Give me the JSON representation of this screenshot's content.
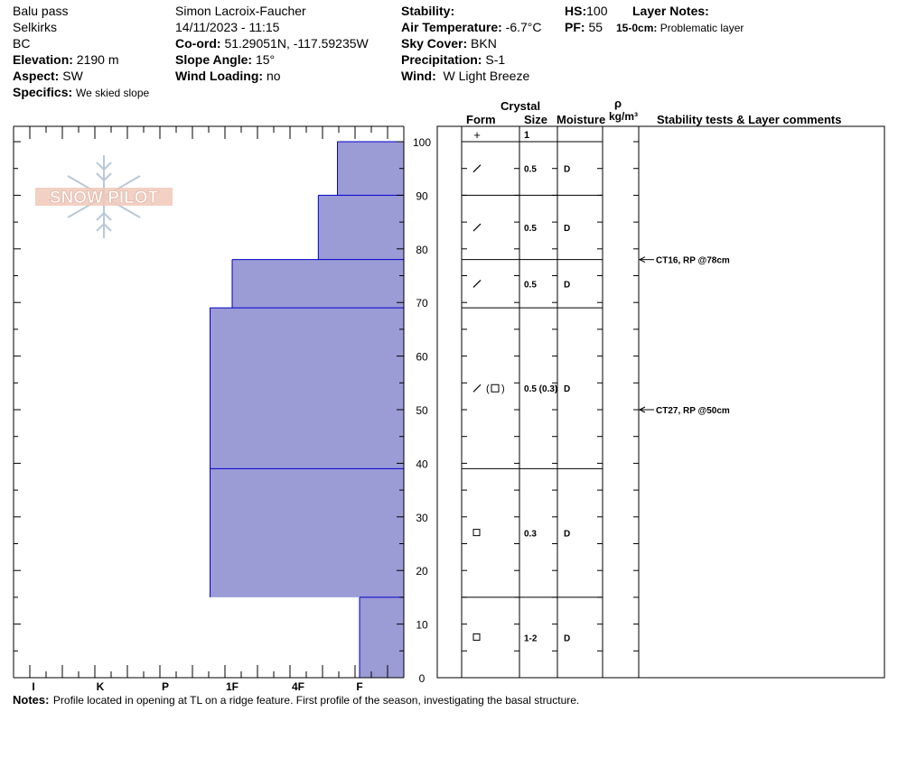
{
  "header": {
    "location": "Balu pass",
    "range": "Selkirks",
    "province": "BC",
    "elevation_label": "Elevation:",
    "elevation_value": "2190 m",
    "aspect_label": "Aspect:",
    "aspect_value": "SW",
    "specifics_label": "Specifics:",
    "specifics_value": "We skied slope",
    "observer": "Simon Lacroix-Faucher",
    "datetime": "14/11/2023 - 11:15",
    "coord_label": "Co-ord:",
    "coord_value": "51.29051N, -117.59235W",
    "slope_label": "Slope Angle:",
    "slope_value": "15°",
    "wind_loading_label": "Wind Loading:",
    "wind_loading_value": "no",
    "stability_label": "Stability:",
    "stability_value": "",
    "air_temp_label": "Air Temperature:",
    "air_temp_value": "-6.7°C",
    "sky_label": "Sky Cover:",
    "sky_value": "BKN",
    "precip_label": "Precipitation:",
    "precip_value": "S-1",
    "wind_label": "Wind:",
    "wind_value": "W Light Breeze",
    "hs_label": "HS:",
    "hs_value": "100",
    "pf_label": "PF:",
    "pf_value": "55",
    "layer_notes_label": "Layer Notes:",
    "layer_notes_range": "15-0cm:",
    "layer_notes_text": "Problematic layer"
  },
  "logo_text": "SNOW PILOT",
  "columns": {
    "crystal": "Crystal",
    "form": "Form",
    "size": "Size",
    "moisture": "Moisture",
    "rho": "ρ",
    "density_unit": "kg/m³",
    "stability": "Stability tests & Layer comments"
  },
  "surface_form_symbol": "+",
  "surface_size": "1",
  "notes_label": "Notes:",
  "notes_text": "Profile located in opening at TL on a ridge feature. First profile of the season, investigating the basal structure.",
  "chart_data": {
    "type": "bar",
    "orientation": "horizontal-step",
    "y_ticks": [
      0,
      10,
      20,
      30,
      40,
      50,
      60,
      70,
      80,
      90,
      100
    ],
    "ylim": [
      0,
      100
    ],
    "hardness_scale": [
      "I",
      "K",
      "P",
      "1F",
      "4F",
      "F"
    ],
    "layers": [
      {
        "top": 100,
        "bottom": 90,
        "hardness": "F+",
        "form": "/",
        "size": "0.5",
        "moisture": "D"
      },
      {
        "top": 90,
        "bottom": 78,
        "hardness": "4F-",
        "form": "/",
        "size": "0.5",
        "moisture": "D"
      },
      {
        "top": 78,
        "bottom": 69,
        "hardness": "1F",
        "form": "/",
        "size": "0.5",
        "moisture": "D"
      },
      {
        "top": 69,
        "bottom": 39,
        "hardness": "1F+",
        "form": "/ (□)",
        "size": "0.5 (0.3)",
        "moisture": "D"
      },
      {
        "top": 39,
        "bottom": 15,
        "hardness": "1F+",
        "form": "□",
        "size": "0.3",
        "moisture": "D"
      },
      {
        "top": 15,
        "bottom": 0,
        "hardness": "F",
        "form": "□",
        "size": "1-2",
        "moisture": "D"
      }
    ],
    "stability_tests": [
      {
        "depth": 78,
        "text": "CT16, RP @78cm"
      },
      {
        "depth": 50,
        "text": "CT27, RP @50cm"
      }
    ],
    "colors": {
      "fill": "#9b9bd6",
      "line": "#0000cc"
    }
  }
}
